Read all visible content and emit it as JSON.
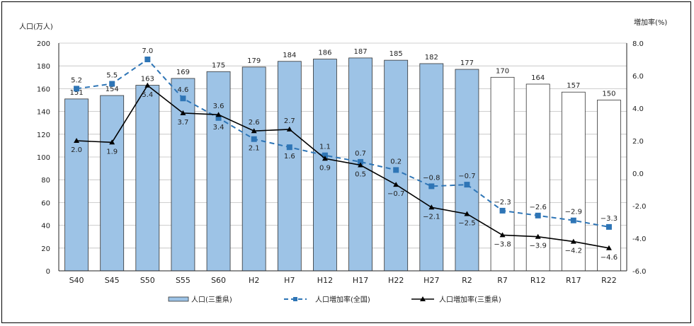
{
  "chart_data": {
    "type": "bar",
    "left_axis_title": "人口(万人)",
    "right_axis_title": "増加率(%)",
    "categories": [
      "S40",
      "S45",
      "S50",
      "S55",
      "S60",
      "H2",
      "H7",
      "H12",
      "H17",
      "H22",
      "H27",
      "R2",
      "R7",
      "R12",
      "R17",
      "R22"
    ],
    "ylim": [
      0,
      200
    ],
    "yticks": [
      0,
      20,
      40,
      60,
      80,
      100,
      120,
      140,
      160,
      180,
      200
    ],
    "y2lim": [
      -6.0,
      8.0
    ],
    "y2ticks": [
      "8.0",
      "6.0",
      "4.0",
      "2.0",
      "0.0",
      "-2.0",
      "-4.0",
      "-6.0"
    ],
    "grid": true,
    "legend_position": "bottom",
    "series": [
      {
        "name": "人口(三重県)",
        "kind": "bar",
        "values": [
          151,
          154,
          163,
          169,
          175,
          179,
          184,
          186,
          187,
          185,
          182,
          177,
          170,
          164,
          157,
          150
        ],
        "labels": [
          "151",
          "154",
          "163",
          "169",
          "175",
          "179",
          "184",
          "186",
          "187",
          "185",
          "182",
          "177",
          "170",
          "164",
          "157",
          "150"
        ],
        "projected_from_index": 12,
        "color": "#9dc3e6",
        "projected_color": "#ffffff"
      },
      {
        "name": "人口増加率(全国)",
        "kind": "line",
        "axis": "right",
        "style": "dashed",
        "values": [
          5.2,
          5.5,
          7.0,
          4.6,
          3.4,
          2.1,
          1.6,
          1.1,
          0.7,
          0.2,
          -0.8,
          -0.7,
          -2.3,
          -2.6,
          -2.9,
          -3.3
        ],
        "labels": [
          "5.2",
          "5.5",
          "7.0",
          "4.6",
          "3.4",
          "2.1",
          "1.6",
          "1.1",
          "0.7",
          "0.2",
          "−0.8",
          "−0.7",
          "−2.3",
          "−2.6",
          "−2.9",
          "−3.3"
        ],
        "color": "#2e75b6"
      },
      {
        "name": "人口増加率(三重県)",
        "kind": "line",
        "axis": "right",
        "style": "solid",
        "values": [
          2.0,
          1.9,
          5.4,
          3.7,
          3.6,
          2.6,
          2.7,
          0.9,
          0.5,
          -0.7,
          -2.1,
          -2.5,
          -3.8,
          -3.9,
          -4.2,
          -4.6
        ],
        "labels": [
          "2.0",
          "1.9",
          "5.4",
          "3.7",
          "3.6",
          "2.6",
          "2.7",
          "0.9",
          "0.5",
          "−0.7",
          "−2.1",
          "−2.5",
          "−3.8",
          "−3.9",
          "−4.2",
          "−4.6"
        ],
        "color": "#000000"
      }
    ]
  }
}
